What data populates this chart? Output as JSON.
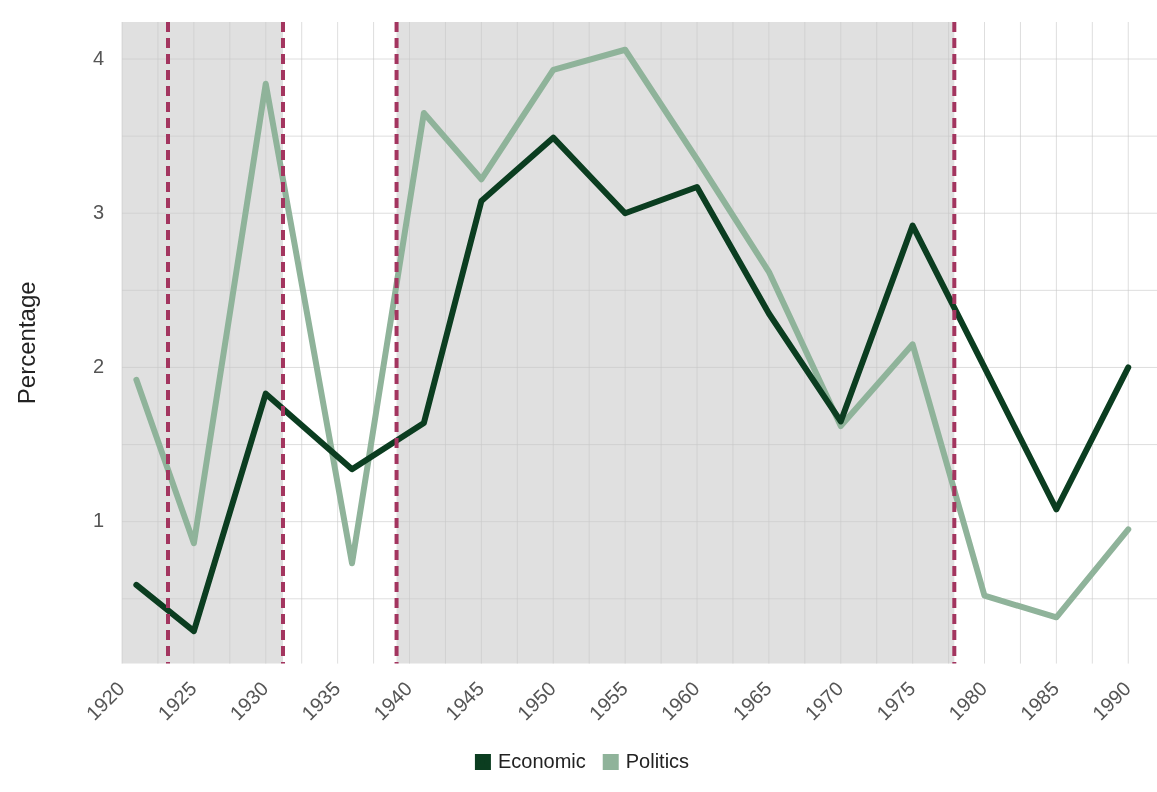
{
  "chart_data": {
    "type": "line",
    "ylabel": "Percentage",
    "xlim": [
      1920,
      1992
    ],
    "xticks": [
      1920,
      {
        "value": 1922.5,
        "label": null
      },
      1925,
      {
        "value": 1927.5,
        "label": null
      },
      1930,
      {
        "value": 1932.5,
        "label": null
      },
      1935,
      {
        "value": 1937.5,
        "label": null
      },
      1940,
      {
        "value": 1942.5,
        "label": null
      },
      1945,
      {
        "value": 1947.5,
        "label": null
      },
      1950,
      {
        "value": 1952.5,
        "label": null
      },
      1955,
      {
        "value": 1957.5,
        "label": null
      },
      1960,
      {
        "value": 1962.5,
        "label": null
      },
      1965,
      {
        "value": 1967.5,
        "label": null
      },
      1970,
      {
        "value": 1972.5,
        "label": null
      },
      1975,
      {
        "value": 1977.5,
        "label": null
      },
      1980,
      {
        "value": 1982.5,
        "label": null
      },
      1985,
      {
        "value": 1987.5,
        "label": null
      },
      1990
    ],
    "ylim": [
      0.08,
      4.24
    ],
    "yticks": [
      {
        "value": 0.5,
        "label": null
      },
      1,
      {
        "value": 1.5,
        "label": null
      },
      2,
      {
        "value": 2.5,
        "label": null
      },
      3,
      {
        "value": 3.5,
        "label": null
      },
      4
    ],
    "grid": true,
    "legend": "bottom",
    "marker": "none",
    "line_style": "solid",
    "series": [
      {
        "name": "Economic",
        "color": "#0b3d20",
        "x": [
          1921,
          1925,
          1930,
          1936,
          1941,
          1945,
          1950,
          1955,
          1960,
          1965,
          1970,
          1975,
          1980,
          1985,
          1990
        ],
        "values": [
          0.59,
          0.29,
          1.83,
          1.34,
          1.64,
          3.08,
          3.49,
          3.0,
          3.17,
          2.35,
          1.65,
          2.92,
          2.0,
          1.08,
          2.0
        ]
      },
      {
        "name": "Politics",
        "color": "#8fb39a",
        "x": [
          1921,
          1925,
          1930,
          1936,
          1941,
          1945,
          1950,
          1955,
          1960,
          1965,
          1970,
          1975,
          1980,
          1985,
          1990
        ],
        "values": [
          1.92,
          0.86,
          3.84,
          0.73,
          3.65,
          3.22,
          3.93,
          4.06,
          3.35,
          2.62,
          1.62,
          2.15,
          0.52,
          0.38,
          0.95
        ]
      }
    ],
    "bands": [
      {
        "axis": "x",
        "from": 1920,
        "to": 1931.2,
        "color": "#e0e0e0"
      },
      {
        "axis": "x",
        "from": 1939.1,
        "to": 1977.9,
        "color": "#e0e0e0"
      }
    ],
    "ref_lines": [
      {
        "axis": "x",
        "value": 1923.2,
        "color": "#a3355f",
        "line_style": "dashed"
      },
      {
        "axis": "x",
        "value": 1931.2,
        "color": "#a3355f",
        "line_style": "dashed"
      },
      {
        "axis": "x",
        "value": 1939.1,
        "color": "#a3355f",
        "line_style": "dashed"
      },
      {
        "axis": "x",
        "value": 1977.9,
        "color": "#a3355f",
        "line_style": "dashed"
      }
    ]
  }
}
